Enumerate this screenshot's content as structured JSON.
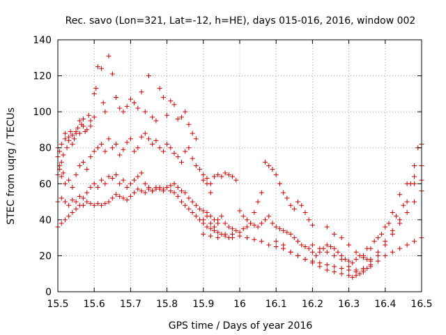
{
  "chart_data": {
    "type": "scatter",
    "title": "Rec. savo (Lon=321, Lat=-12, h=HE), days 015-016, 2016, window 002",
    "xlabel": "GPS time / Days of year 2016",
    "ylabel": "STEC from uqrg / TECUs",
    "xlim": [
      15.5,
      16.5
    ],
    "ylim": [
      0,
      140
    ],
    "x_ticks": [
      15.5,
      15.6,
      15.7,
      15.8,
      15.9,
      16,
      16.1,
      16.2,
      16.3,
      16.4,
      16.5
    ],
    "x_tick_labels": [
      "15.5",
      "15.6",
      "15.7",
      "15.8",
      "15.9",
      "16",
      "16.1",
      "16.2",
      "16.3",
      "16.4",
      "16.5"
    ],
    "y_ticks": [
      0,
      20,
      40,
      60,
      80,
      100,
      120,
      140
    ],
    "y_tick_labels": [
      "0",
      "20",
      "40",
      "60",
      "80",
      "100",
      "120",
      "140"
    ],
    "grid": true,
    "marker": "+",
    "color": "#cc0000",
    "series": [
      {
        "x": [
          15.5,
          15.5,
          15.505,
          15.505,
          15.51,
          15.51,
          15.515,
          15.52,
          15.52,
          15.525,
          15.53,
          15.53,
          15.535,
          15.54,
          15.54,
          15.545,
          15.55,
          15.55,
          15.555,
          15.56,
          15.56,
          15.565,
          15.57,
          15.57,
          15.575,
          15.58,
          15.585,
          15.59,
          15.59,
          15.6,
          15.6,
          15.605,
          15.61,
          15.62,
          15.625,
          15.63,
          15.64,
          15.65,
          15.66,
          15.67,
          15.68,
          15.69,
          15.7,
          15.71,
          15.72,
          15.73,
          15.74,
          15.75,
          15.76,
          15.77,
          15.78,
          15.79,
          15.8,
          15.81,
          15.82,
          15.83,
          15.84,
          15.85,
          15.86,
          15.87,
          15.88
        ],
        "y": [
          80,
          75,
          70,
          78,
          82,
          72,
          76,
          85,
          88,
          80,
          86,
          84,
          89,
          87,
          82,
          85,
          89,
          88,
          91,
          95,
          88,
          93,
          92,
          96,
          89,
          90,
          98,
          95,
          92,
          97,
          110,
          113,
          125,
          124,
          105,
          100,
          131,
          121,
          108,
          102,
          100,
          103,
          107,
          105,
          102,
          111,
          100,
          120,
          97,
          95,
          113,
          108,
          98,
          106,
          104,
          96,
          97,
          100,
          93,
          88,
          85
        ]
      },
      {
        "x": [
          15.5,
          15.505,
          15.51,
          15.515,
          15.52,
          15.53,
          15.54,
          15.55,
          15.56,
          15.57,
          15.58,
          15.59,
          15.6,
          15.61,
          15.62,
          15.63,
          15.64,
          15.65,
          15.66,
          15.67,
          15.68,
          15.69,
          15.7,
          15.71,
          15.72,
          15.73,
          15.74,
          15.75,
          15.76,
          15.77,
          15.78,
          15.79,
          15.8,
          15.81,
          15.82,
          15.83,
          15.84,
          15.85,
          15.86,
          15.87,
          15.88,
          15.89,
          15.9,
          15.91,
          15.92
        ],
        "y": [
          65,
          68,
          64,
          66,
          60,
          62,
          58,
          65,
          70,
          72,
          68,
          75,
          78,
          80,
          82,
          78,
          85,
          80,
          82,
          76,
          79,
          83,
          85,
          78,
          80,
          86,
          88,
          85,
          82,
          84,
          80,
          78,
          82,
          80,
          77,
          75,
          72,
          78,
          80,
          74,
          70,
          68,
          65,
          60,
          55
        ]
      },
      {
        "x": [
          15.5,
          15.51,
          15.52,
          15.53,
          15.54,
          15.55,
          15.56,
          15.57,
          15.58,
          15.59,
          15.6,
          15.61,
          15.62,
          15.63,
          15.64,
          15.65,
          15.66,
          15.67,
          15.68,
          15.69,
          15.7,
          15.71,
          15.72,
          15.73,
          15.74,
          15.75,
          15.76,
          15.77,
          15.78,
          15.79,
          15.8,
          15.81,
          15.82,
          15.83,
          15.84,
          15.85,
          15.86,
          15.87,
          15.88,
          15.89,
          15.9,
          15.91,
          15.92,
          15.93,
          15.94
        ],
        "y": [
          50,
          52,
          50,
          48,
          51,
          50,
          53,
          52,
          55,
          58,
          60,
          58,
          62,
          60,
          64,
          63,
          65,
          60,
          62,
          58,
          60,
          62,
          64,
          66,
          60,
          58,
          56,
          57,
          58,
          57,
          58,
          59,
          60,
          58,
          56,
          55,
          52,
          50,
          48,
          46,
          45,
          44,
          42,
          40,
          38
        ]
      },
      {
        "x": [
          15.5,
          15.51,
          15.52,
          15.53,
          15.54,
          15.55,
          15.56,
          15.57,
          15.58,
          15.59,
          15.6,
          15.61,
          15.62,
          15.63,
          15.64,
          15.65,
          15.66,
          15.67,
          15.68,
          15.69,
          15.7,
          15.71,
          15.72,
          15.73,
          15.74,
          15.75,
          15.76,
          15.77,
          15.78,
          15.79,
          15.8,
          15.81,
          15.82,
          15.83,
          15.84,
          15.85,
          15.86,
          15.87,
          15.88,
          15.89,
          15.9,
          15.91,
          15.92,
          15.93,
          15.94,
          15.95,
          15.96,
          15.97,
          15.98
        ],
        "y": [
          36,
          38,
          40,
          42,
          44,
          46,
          48,
          48,
          50,
          49,
          48,
          49,
          48,
          49,
          50,
          52,
          54,
          53,
          52,
          51,
          53,
          55,
          57,
          56,
          55,
          57,
          56,
          58,
          57,
          56,
          58,
          56,
          55,
          53,
          50,
          48,
          46,
          44,
          42,
          40,
          38,
          36,
          35,
          34,
          33,
          32,
          31,
          30,
          32
        ]
      },
      {
        "x": [
          15.9,
          15.91,
          15.92,
          15.93,
          15.94,
          15.95,
          15.96,
          15.97,
          15.98,
          15.99,
          16.0,
          16.01,
          16.02,
          16.03,
          16.04,
          16.05,
          16.06,
          16.07,
          16.08,
          16.09,
          16.1,
          16.11,
          16.12,
          16.13,
          16.14,
          16.15,
          16.16,
          16.17,
          16.18,
          16.19,
          16.2
        ],
        "y": [
          62,
          63,
          60,
          64,
          65,
          64,
          66,
          65,
          64,
          62,
          45,
          42,
          40,
          38,
          44,
          50,
          55,
          72,
          70,
          68,
          65,
          60,
          55,
          52,
          48,
          46,
          50,
          48,
          44,
          40,
          37
        ]
      },
      {
        "x": [
          15.9,
          15.91,
          15.92,
          15.93,
          15.94,
          15.95,
          15.96,
          15.97,
          15.98,
          15.99,
          16.0,
          16.01,
          16.02,
          16.03,
          16.04,
          16.05,
          16.06,
          16.07,
          16.08,
          16.09,
          16.1,
          16.11,
          16.12,
          16.13,
          16.14,
          16.15,
          16.16,
          16.17,
          16.18,
          16.19,
          16.2,
          16.21,
          16.22,
          16.23,
          16.24,
          16.25,
          16.26,
          16.27,
          16.28,
          16.29,
          16.3,
          16.31,
          16.32,
          16.33,
          16.34,
          16.35,
          16.36
        ],
        "y": [
          40,
          42,
          38,
          36,
          40,
          42,
          38,
          36,
          35,
          34,
          33,
          35,
          36,
          38,
          37,
          36,
          38,
          40,
          42,
          38,
          36,
          35,
          34,
          33,
          32,
          30,
          28,
          26,
          25,
          24,
          22,
          20,
          22,
          24,
          26,
          25,
          24,
          22,
          20,
          18,
          17,
          16,
          18,
          20,
          19,
          18,
          17
        ]
      },
      {
        "x": [
          15.9,
          15.92,
          15.94,
          15.96,
          15.98,
          16.0,
          16.02,
          16.04,
          16.06,
          16.08,
          16.1,
          16.12,
          16.14,
          16.16,
          16.18,
          16.2,
          16.22,
          16.24,
          16.26,
          16.28,
          16.3,
          16.32,
          16.34,
          16.36,
          16.38,
          16.4,
          16.42,
          16.44,
          16.46,
          16.48,
          16.5
        ],
        "y": [
          32,
          31,
          30,
          32,
          30,
          31,
          30,
          29,
          28,
          26,
          25,
          24,
          22,
          20,
          18,
          17,
          16,
          15,
          14,
          13,
          12,
          11,
          12,
          14,
          17,
          20,
          22,
          24,
          26,
          28,
          30
        ]
      },
      {
        "x": [
          16.1,
          16.12,
          16.14,
          16.16,
          16.18,
          16.2,
          16.22,
          16.24,
          16.26,
          16.28,
          16.3,
          16.31,
          16.32,
          16.33,
          16.34,
          16.35,
          16.36,
          16.38,
          16.4,
          16.42,
          16.44,
          16.46,
          16.48,
          16.5
        ],
        "y": [
          28,
          26,
          22,
          20,
          18,
          16,
          14,
          12,
          11,
          10,
          9,
          8,
          9,
          10,
          11,
          13,
          15,
          20,
          26,
          32,
          38,
          44,
          50,
          56
        ]
      },
      {
        "x": [
          16.2,
          16.22,
          16.24,
          16.26,
          16.28,
          16.3,
          16.32,
          16.34,
          16.36,
          16.38,
          16.4,
          16.42,
          16.44,
          16.46,
          16.48,
          16.5
        ],
        "y": [
          26,
          24,
          22,
          20,
          18,
          14,
          12,
          13,
          18,
          22,
          28,
          34,
          40,
          50,
          60,
          62
        ]
      },
      {
        "x": [
          16.24,
          16.26,
          16.28,
          16.3,
          16.32,
          16.34,
          16.36,
          16.38,
          16.4,
          16.42,
          16.44,
          16.46,
          16.48,
          16.5
        ],
        "y": [
          36,
          32,
          30,
          26,
          22,
          20,
          24,
          30,
          36,
          44,
          54,
          60,
          64,
          70
        ]
      },
      {
        "x": [
          16.35,
          16.37,
          16.39,
          16.41,
          16.43,
          16.45,
          16.47,
          16.48,
          16.49,
          16.5
        ],
        "y": [
          24,
          28,
          32,
          38,
          42,
          48,
          60,
          70,
          80,
          82
        ]
      }
    ]
  }
}
